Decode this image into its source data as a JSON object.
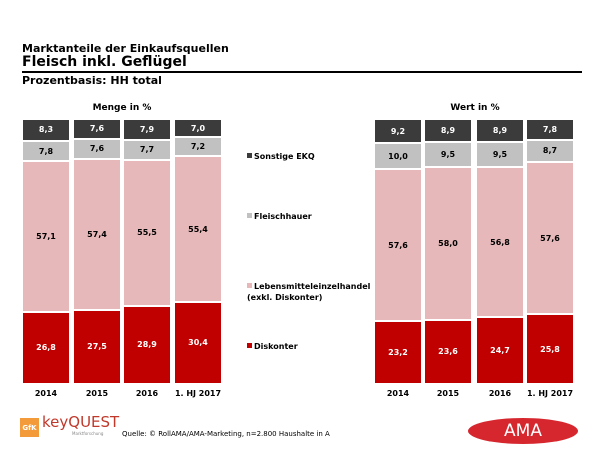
{
  "header": {
    "subtitle_top": "Marktanteile der Einkaufsquellen",
    "title": "Fleisch inkl. Geflügel",
    "basis": "Prozentbasis: HH total"
  },
  "colors": {
    "Sonstige EKQ": "#3b3b3b",
    "Fleischhauer": "#c1c1c1",
    "Lebensmitteleinzelhandel": "#e6b8b9",
    "Diskonter": "#c00000"
  },
  "legend": [
    {
      "label": "Sonstige EKQ",
      "color": "#3b3b3b"
    },
    {
      "label": "Fleischhauer",
      "color": "#c1c1c1"
    },
    {
      "label": "Lebensmitteleinzelhandel\n(exkl. Diskonter)",
      "color": "#e6b8b9"
    },
    {
      "label": "Diskonter",
      "color": "#c00000"
    }
  ],
  "chart_data": [
    {
      "type": "bar",
      "stacked": true,
      "title": "Menge in %",
      "categories": [
        "2014",
        "2015",
        "2016",
        "1. HJ 2017"
      ],
      "series": [
        {
          "name": "Diskonter",
          "values": [
            26.8,
            27.5,
            28.9,
            30.4
          ],
          "labels": [
            "26,8",
            "27,5",
            "28,9",
            "30,4"
          ]
        },
        {
          "name": "Lebensmitteleinzelhandel (exkl. Diskonter)",
          "values": [
            57.1,
            57.4,
            55.5,
            55.4
          ],
          "labels": [
            "57,1",
            "57,4",
            "55,5",
            "55,4"
          ]
        },
        {
          "name": "Fleischhauer",
          "values": [
            7.8,
            7.6,
            7.7,
            7.2
          ],
          "labels": [
            "7,8",
            "7,6",
            "7,7",
            "7,2"
          ]
        },
        {
          "name": "Sonstige EKQ",
          "values": [
            8.3,
            7.6,
            7.9,
            7.0
          ],
          "labels": [
            "8,3",
            "7,6",
            "7,9",
            "7,0"
          ]
        }
      ]
    },
    {
      "type": "bar",
      "stacked": true,
      "title": "Wert in %",
      "categories": [
        "2014",
        "2015",
        "2016",
        "1. HJ 2017"
      ],
      "series": [
        {
          "name": "Diskonter",
          "values": [
            23.2,
            23.6,
            24.7,
            25.8
          ],
          "labels": [
            "23,2",
            "23,6",
            "24,7",
            "25,8"
          ]
        },
        {
          "name": "Lebensmitteleinzelhandel (exkl. Diskonter)",
          "values": [
            57.6,
            58.0,
            56.8,
            57.6
          ],
          "labels": [
            "57,6",
            "58,0",
            "56,8",
            "57,6"
          ]
        },
        {
          "name": "Fleischhauer",
          "values": [
            10.0,
            9.5,
            9.5,
            8.7
          ],
          "labels": [
            "10,0",
            "9,5",
            "9,5",
            "8,7"
          ]
        },
        {
          "name": "Sonstige EKQ",
          "values": [
            9.2,
            8.9,
            8.9,
            7.8
          ],
          "labels": [
            "9,2",
            "8,9",
            "8,9",
            "7,8"
          ]
        }
      ]
    }
  ],
  "footer": {
    "source": "Quelle: © RollAMA/AMA-Marketing, n=2.800 Haushalte in A",
    "logo_gfk": "GfK",
    "logo_keyquest": "keyQUEST",
    "logo_keyquest_sub": "Marktforschung",
    "logo_ama": "AMA"
  }
}
